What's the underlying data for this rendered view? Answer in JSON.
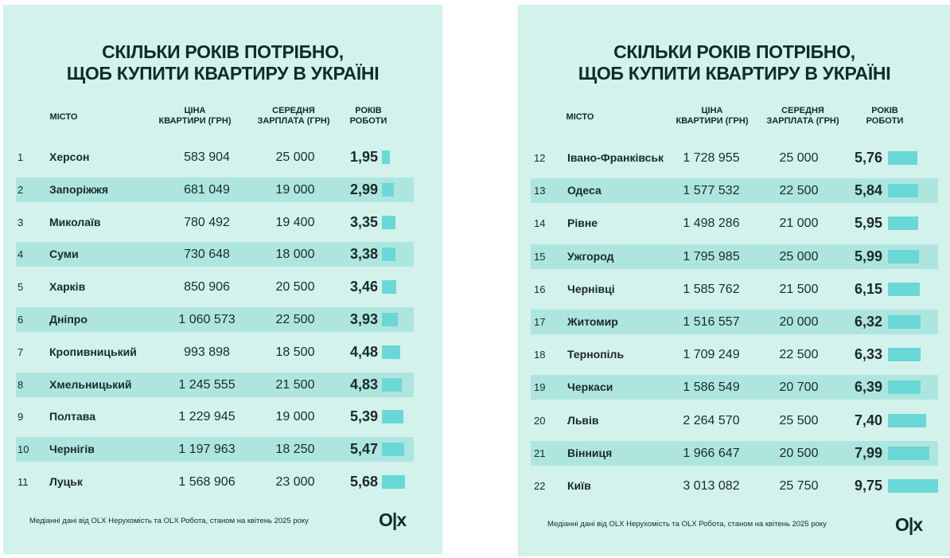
{
  "colors": {
    "panel_bg": "#d3f2ec",
    "row_shade": "#aee6df",
    "bar": "#6ad8d6",
    "text": "#0e2b2a"
  },
  "panels": [
    {
      "title_line1": "СКІЛЬКИ РОКІВ ПОТРІБНО,",
      "title_line2": "ЩОБ КУПИТИ КВАРТИРУ В УКРАЇНІ",
      "headers": {
        "city": "МІСТО",
        "price": "ЦІНА\nКВАРТИРИ (ГРН)",
        "salary": "СЕРЕДНЯ\nЗАРПЛАТА (ГРН)",
        "years": "РОКІВ\nРОБОТИ"
      },
      "footnote": "Медіанні дані від OLX Нерухомість та OLX Робота, станом на квітень 2025 року",
      "logo": "O|x"
    },
    {
      "title_line1": "СКІЛЬКИ РОКІВ ПОТРІБНО,",
      "title_line2": "ЩОБ КУПИТИ КВАРТИРУ В УКРАЇНІ",
      "headers": {
        "city": "МІСТО",
        "price": "ЦІНА\nКВАРТИРИ (ГРН)",
        "salary": "СЕРЕДНЯ\nЗАРПЛАТА (ГРН)",
        "years": "РОКІВ\nРОБОТИ"
      },
      "footnote": "Медіанні дані від OLX Нерухомість та OLX Робота, станом на квітень 2025 року",
      "logo": "O|x"
    }
  ],
  "chart_data": [
    {
      "type": "table",
      "columns": [
        "",
        "МІСТО",
        "ЦІНА КВАРТИРИ (ГРН)",
        "СЕРЕДНЯ ЗАРПЛАТА (ГРН)",
        "РОКІВ РОБОТИ"
      ],
      "rows": [
        {
          "n": "1",
          "city": "Херсон",
          "price": "583 904",
          "salary": "25 000",
          "years": "1,95",
          "value": 1.95
        },
        {
          "n": "2",
          "city": "Запоріжжя",
          "price": "681 049",
          "salary": "19 000",
          "years": "2,99",
          "value": 2.99
        },
        {
          "n": "3",
          "city": "Миколаїв",
          "price": "780 492",
          "salary": "19 400",
          "years": "3,35",
          "value": 3.35
        },
        {
          "n": "4",
          "city": "Суми",
          "price": "730 648",
          "salary": "18 000",
          "years": "3,38",
          "value": 3.38
        },
        {
          "n": "5",
          "city": "Харків",
          "price": "850 906",
          "salary": "20 500",
          "years": "3,46",
          "value": 3.46
        },
        {
          "n": "6",
          "city": "Дніпро",
          "price": "1 060 573",
          "salary": "22 500",
          "years": "3,93",
          "value": 3.93
        },
        {
          "n": "7",
          "city": "Кропивницький",
          "price": "993 898",
          "salary": "18 500",
          "years": "4,48",
          "value": 4.48
        },
        {
          "n": "8",
          "city": "Хмельницький",
          "price": "1 245 555",
          "salary": "21 500",
          "years": "4,83",
          "value": 4.83
        },
        {
          "n": "9",
          "city": "Полтава",
          "price": "1 229 945",
          "salary": "19 000",
          "years": "5,39",
          "value": 5.39
        },
        {
          "n": "10",
          "city": "Чернігів",
          "price": "1 197 963",
          "salary": "18 250",
          "years": "5,47",
          "value": 5.47
        },
        {
          "n": "11",
          "city": "Луцьк",
          "price": "1 568 906",
          "salary": "23 000",
          "years": "5,68",
          "value": 5.68
        }
      ]
    },
    {
      "type": "table",
      "columns": [
        "",
        "МІСТО",
        "ЦІНА КВАРТИРИ (ГРН)",
        "СЕРЕДНЯ ЗАРПЛАТА (ГРН)",
        "РОКІВ РОБОТИ"
      ],
      "rows": [
        {
          "n": "12",
          "city": "Івано-Франківськ",
          "price": "1 728 955",
          "salary": "25 000",
          "years": "5,76",
          "value": 5.76
        },
        {
          "n": "13",
          "city": "Одеса",
          "price": "1 577 532",
          "salary": "22 500",
          "years": "5,84",
          "value": 5.84
        },
        {
          "n": "14",
          "city": "Рівне",
          "price": "1 498 286",
          "salary": "21 000",
          "years": "5,95",
          "value": 5.95
        },
        {
          "n": "15",
          "city": "Ужгород",
          "price": "1 795 985",
          "salary": "25 000",
          "years": "5,99",
          "value": 5.99
        },
        {
          "n": "16",
          "city": "Чернівці",
          "price": "1 585 762",
          "salary": "21 500",
          "years": "6,15",
          "value": 6.15
        },
        {
          "n": "17",
          "city": "Житомир",
          "price": "1 516 557",
          "salary": "20 000",
          "years": "6,32",
          "value": 6.32
        },
        {
          "n": "18",
          "city": "Тернопіль",
          "price": "1 709 249",
          "salary": "22 500",
          "years": "6,33",
          "value": 6.33
        },
        {
          "n": "19",
          "city": "Черкаси",
          "price": "1 586 549",
          "salary": "20 700",
          "years": "6,39",
          "value": 6.39
        },
        {
          "n": "20",
          "city": "Львів",
          "price": "2 264 570",
          "salary": "25 500",
          "years": "7,40",
          "value": 7.4
        },
        {
          "n": "21",
          "city": "Вінниця",
          "price": "1 966 647",
          "salary": "20 500",
          "years": "7,99",
          "value": 7.99
        },
        {
          "n": "22",
          "city": "Київ",
          "price": "3 013 082",
          "salary": "25 750",
          "years": "9,75",
          "value": 9.75
        }
      ]
    }
  ]
}
